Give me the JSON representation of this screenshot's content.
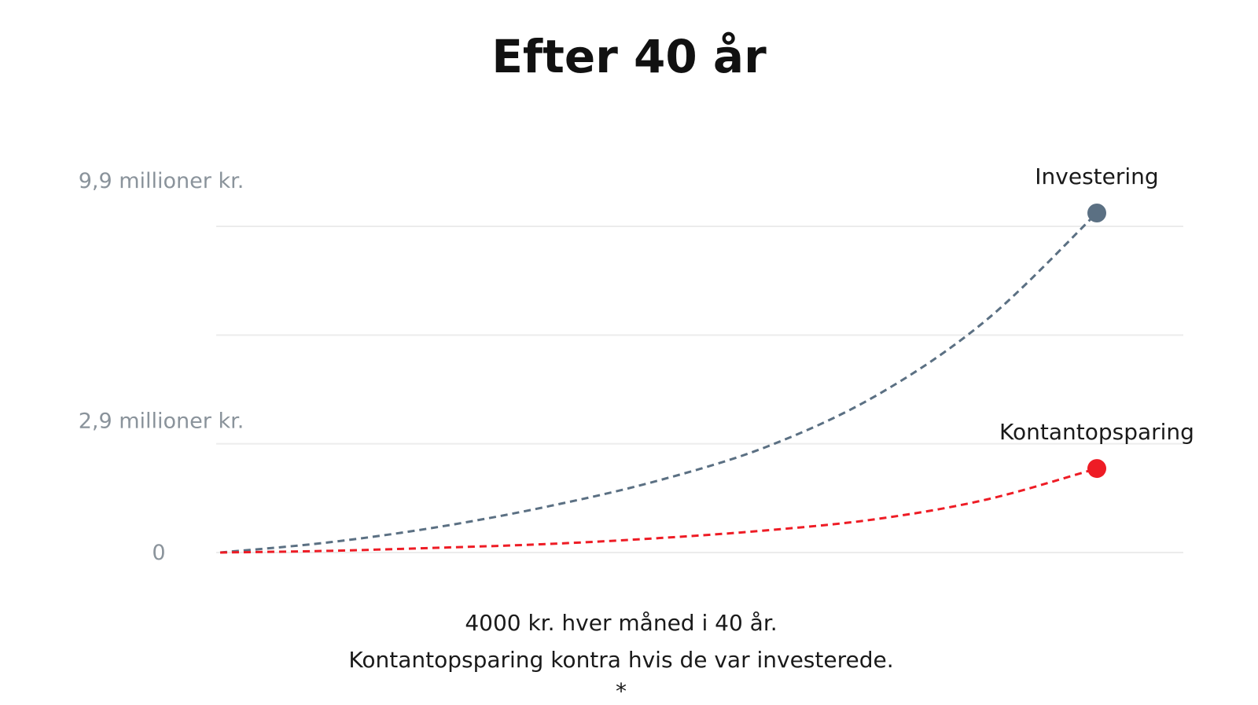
{
  "chart_data": {
    "type": "line",
    "title": "Efter 40 år",
    "x": [
      0,
      5,
      10,
      15,
      20,
      25,
      30,
      35,
      40
    ],
    "xlim": [
      0,
      40
    ],
    "ylim": [
      0,
      9.9
    ],
    "y_ticks": [
      {
        "value": 0,
        "label": "0"
      },
      {
        "value": 2.9,
        "label": "2,9 millioner kr."
      },
      {
        "value": 9.9,
        "label": "9,9 millioner kr."
      }
    ],
    "grid_values": [
      0,
      3.17,
      6.34,
      9.51
    ],
    "series": [
      {
        "name": "Investering",
        "color": "#5b7083",
        "values": [
          0,
          0.3,
          0.75,
          1.35,
          2.1,
          3.1,
          4.6,
          6.8,
          9.9
        ]
      },
      {
        "name": "Kontantopsparing",
        "color": "#ee1c25",
        "values": [
          0,
          0.05,
          0.14,
          0.25,
          0.42,
          0.65,
          0.98,
          1.55,
          2.45
        ]
      }
    ],
    "caption": [
      "4000 kr. hver måned i 40 år.",
      "Kontantopsparing kontra hvis de var investerede.",
      "*"
    ]
  }
}
